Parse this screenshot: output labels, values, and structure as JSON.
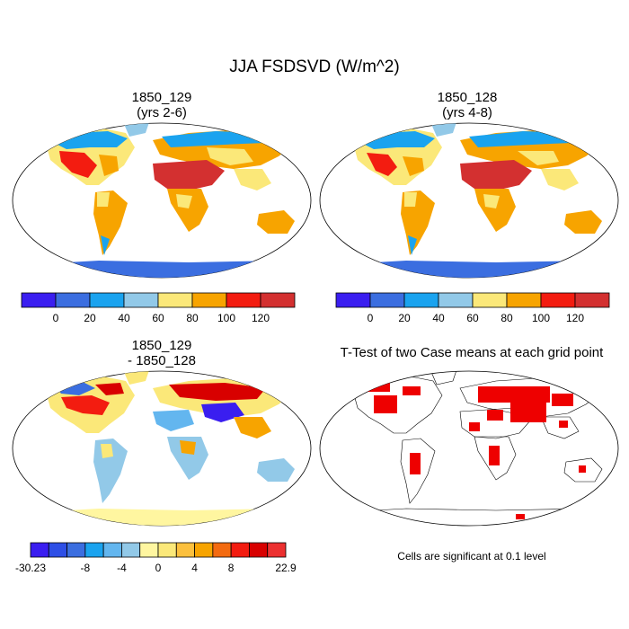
{
  "title": "JJA FSDSVD (W/m^2)",
  "panels": {
    "top_left": {
      "title_line1": "1850_129",
      "title_line2": "(yrs 2-6)"
    },
    "top_right": {
      "title_line1": "1850_128",
      "title_line2": "(yrs 4-8)"
    },
    "bottom_left": {
      "title_line1": "1850_129",
      "title_line2": "- 1850_128"
    },
    "bottom_right": {
      "title": "T-Test of two Case means at each grid point",
      "note": "Cells are significant at 0.1 level"
    }
  },
  "colorbar_main": {
    "colors": [
      "#3a1ef0",
      "#3b6ee0",
      "#1aa3ef",
      "#92c9e8",
      "#fbe879",
      "#f7a400",
      "#f31c10",
      "#d33030"
    ],
    "labels": [
      "0",
      "20",
      "40",
      "60",
      "80",
      "100",
      "120"
    ]
  },
  "colorbar_diff": {
    "colors": [
      "#3a1ef0",
      "#2e4fe6",
      "#3b6ee0",
      "#1aa3ef",
      "#63b6ef",
      "#92c9e8",
      "#fff6a0",
      "#fbe879",
      "#fcc03d",
      "#f7a400",
      "#f36a10",
      "#f31c10",
      "#d80000",
      "#ec3030"
    ],
    "labels": [
      "-30.23",
      "-8",
      "-4",
      "0",
      "4",
      "8",
      "22.9"
    ]
  },
  "significance_color": "#ee0000"
}
